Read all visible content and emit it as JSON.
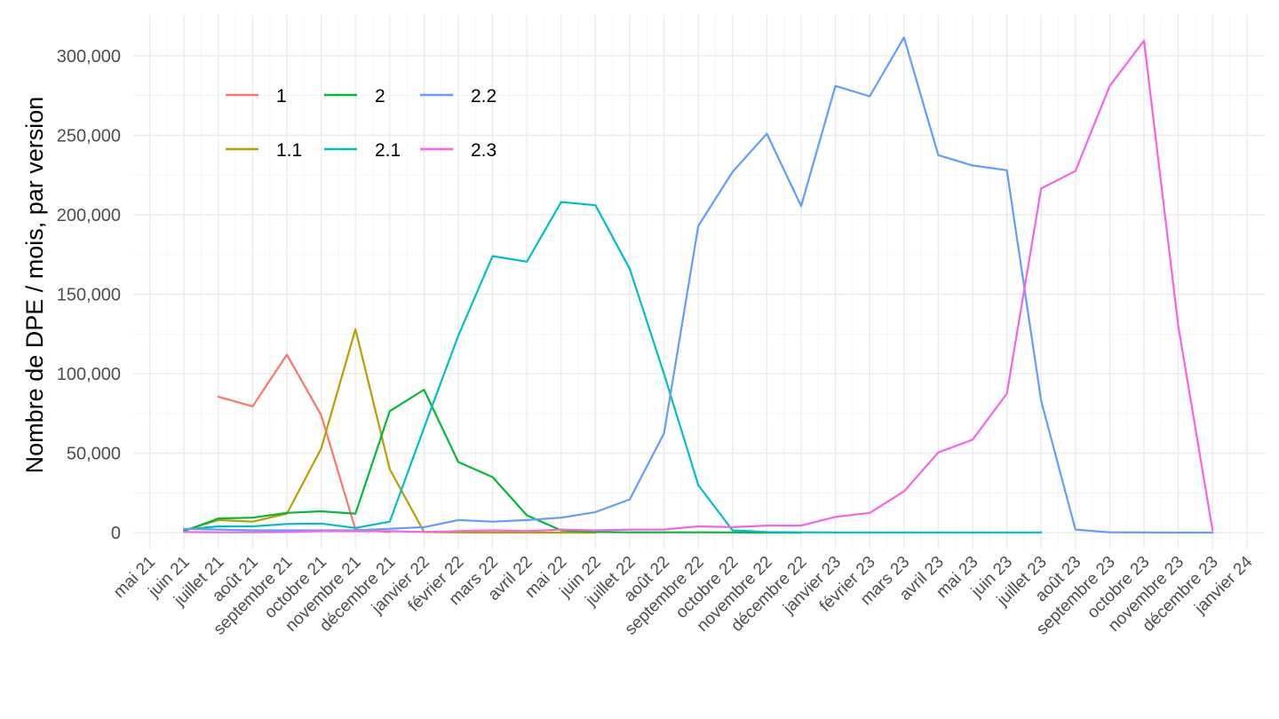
{
  "chart_data": {
    "type": "line",
    "title": "",
    "xlabel": "",
    "ylabel": "Nombre de DPE / mois, par version",
    "ylim": [
      -15000,
      325000
    ],
    "y_ticks": [
      0,
      50000,
      100000,
      150000,
      200000,
      250000,
      300000
    ],
    "y_tick_labels": [
      "0",
      "50,000",
      "100,000",
      "150,000",
      "200,000",
      "250,000",
      "300,000"
    ],
    "x_tick_labels": [
      "mai 21",
      "juin 21",
      "juillet 21",
      "août 21",
      "septembre 21",
      "octobre 21",
      "novembre 21",
      "décembre 21",
      "janvier 22",
      "février 22",
      "mars 22",
      "avril 22",
      "mai 22",
      "juin 22",
      "juillet 22",
      "août 22",
      "septembre 22",
      "octobre 22",
      "novembre 22",
      "décembre 22",
      "janvier 23",
      "février 23",
      "mars 23",
      "avril 23",
      "mai 23",
      "juin 23",
      "juillet 23",
      "août 23",
      "septembre 23",
      "octobre 23",
      "novembre 23",
      "décembre 23",
      "janvier 24"
    ],
    "grid": true,
    "legend_position": "top-left",
    "series": [
      {
        "name": "1",
        "color": "#F8766D",
        "points": [
          [
            "juillet 21",
            85500
          ],
          [
            "août 21",
            79500
          ],
          [
            "septembre 21",
            112000
          ],
          [
            "octobre 21",
            74000
          ],
          [
            "novembre 21",
            2000
          ],
          [
            "décembre 21",
            500
          ]
        ]
      },
      {
        "name": "1.1",
        "color": "#B79F00",
        "points": [
          [
            "juin 21",
            1500
          ],
          [
            "juillet 21",
            8000
          ],
          [
            "août 21",
            7000
          ],
          [
            "septembre 21",
            12000
          ],
          [
            "octobre 21",
            53000
          ],
          [
            "novembre 21",
            128000
          ],
          [
            "décembre 21",
            40000
          ],
          [
            "janvier 22",
            500
          ],
          [
            "février 22",
            200
          ],
          [
            "mars 22",
            100
          ],
          [
            "avril 22",
            100
          ],
          [
            "mai 22",
            100
          ],
          [
            "juin 22",
            50
          ]
        ]
      },
      {
        "name": "2",
        "color": "#00BA38",
        "points": [
          [
            "juin 21",
            1000
          ],
          [
            "juillet 21",
            9000
          ],
          [
            "août 21",
            9500
          ],
          [
            "septembre 21",
            12500
          ],
          [
            "octobre 21",
            13500
          ],
          [
            "novembre 21",
            12000
          ],
          [
            "décembre 21",
            76500
          ],
          [
            "janvier 22",
            90000
          ],
          [
            "février 22",
            44500
          ],
          [
            "mars 22",
            35000
          ],
          [
            "avril 22",
            11000
          ],
          [
            "mai 22",
            1500
          ],
          [
            "juin 22",
            500
          ],
          [
            "juillet 22",
            300
          ],
          [
            "août 22",
            300
          ],
          [
            "septembre 22",
            300
          ],
          [
            "octobre 22",
            200
          ],
          [
            "novembre 22",
            100
          ],
          [
            "décembre 22",
            50
          ]
        ]
      },
      {
        "name": "2.1",
        "color": "#00BFC4",
        "points": [
          [
            "juin 21",
            2000
          ],
          [
            "juillet 21",
            4000
          ],
          [
            "août 21",
            4000
          ],
          [
            "septembre 21",
            5500
          ],
          [
            "octobre 21",
            5800
          ],
          [
            "novembre 21",
            3000
          ],
          [
            "décembre 21",
            7000
          ],
          [
            "janvier 22",
            66000
          ],
          [
            "février 22",
            124000
          ],
          [
            "mars 22",
            174000
          ],
          [
            "avril 22",
            170500
          ],
          [
            "mai 22",
            208000
          ],
          [
            "juin 22",
            206000
          ],
          [
            "juillet 22",
            166000
          ],
          [
            "août 22",
            100000
          ],
          [
            "septembre 22",
            30000
          ],
          [
            "octobre 22",
            1500
          ],
          [
            "novembre 22",
            500
          ],
          [
            "décembre 22",
            300
          ],
          [
            "janvier 23",
            200
          ],
          [
            "février 23",
            200
          ],
          [
            "mars 23",
            200
          ],
          [
            "avril 23",
            200
          ],
          [
            "mai 23",
            200
          ],
          [
            "juin 23",
            200
          ],
          [
            "juillet 23",
            200
          ]
        ]
      },
      {
        "name": "2.2",
        "color": "#619CFF",
        "points": [
          [
            "juin 21",
            2500
          ],
          [
            "juillet 21",
            2000
          ],
          [
            "août 21",
            1500
          ],
          [
            "septembre 21",
            1500
          ],
          [
            "octobre 21",
            1500
          ],
          [
            "novembre 21",
            1500
          ],
          [
            "décembre 21",
            2500
          ],
          [
            "janvier 22",
            3500
          ],
          [
            "février 22",
            8000
          ],
          [
            "mars 22",
            7000
          ],
          [
            "avril 22",
            8000
          ],
          [
            "mai 22",
            9500
          ],
          [
            "juin 22",
            13000
          ],
          [
            "juillet 22",
            21000
          ],
          [
            "août 22",
            62500
          ],
          [
            "septembre 22",
            193000
          ],
          [
            "octobre 22",
            227000
          ],
          [
            "novembre 22",
            251000
          ],
          [
            "décembre 22",
            205500
          ],
          [
            "janvier 23",
            281000
          ],
          [
            "février 23",
            274500
          ],
          [
            "mars 23",
            311500
          ],
          [
            "avril 23",
            237500
          ],
          [
            "mai 23",
            231000
          ],
          [
            "juin 23",
            228000
          ],
          [
            "juillet 23",
            83000
          ],
          [
            "août 23",
            2000
          ],
          [
            "septembre 23",
            300
          ],
          [
            "octobre 23",
            200
          ],
          [
            "novembre 23",
            100
          ],
          [
            "décembre 23",
            100
          ]
        ]
      },
      {
        "name": "2.3",
        "color": "#F564E3",
        "points": [
          [
            "juin 21",
            500
          ],
          [
            "juillet 21",
            300
          ],
          [
            "août 21",
            300
          ],
          [
            "septembre 21",
            500
          ],
          [
            "octobre 21",
            1000
          ],
          [
            "novembre 21",
            1000
          ],
          [
            "décembre 21",
            1000
          ],
          [
            "janvier 22",
            500
          ],
          [
            "février 22",
            1000
          ],
          [
            "mars 22",
            1500
          ],
          [
            "avril 22",
            1000
          ],
          [
            "mai 22",
            2000
          ],
          [
            "juin 22",
            1500
          ],
          [
            "juillet 22",
            2000
          ],
          [
            "août 22",
            2000
          ],
          [
            "septembre 22",
            4000
          ],
          [
            "octobre 22",
            3500
          ],
          [
            "novembre 22",
            4500
          ],
          [
            "décembre 22",
            4500
          ],
          [
            "janvier 23",
            10000
          ],
          [
            "février 23",
            12500
          ],
          [
            "mars 23",
            26000
          ],
          [
            "avril 23",
            50500
          ],
          [
            "mai 23",
            58500
          ],
          [
            "juin 23",
            87500
          ],
          [
            "juillet 23",
            216500
          ],
          [
            "août 23",
            227500
          ],
          [
            "septembre 23",
            281000
          ],
          [
            "octobre 23",
            309500
          ],
          [
            "novembre 23",
            130000
          ],
          [
            "décembre 23",
            1500
          ]
        ]
      }
    ],
    "legend_order": [
      "1",
      "2",
      "2.2",
      "1.1",
      "2.1",
      "2.3"
    ]
  }
}
